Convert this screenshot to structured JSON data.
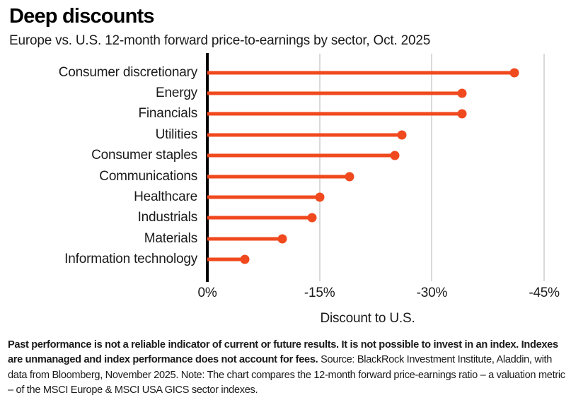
{
  "header": {
    "title": "Deep discounts",
    "subtitle": "Europe vs. U.S. 12-month forward price-to-earnings by sector, Oct. 2025"
  },
  "chart_data": {
    "type": "bar",
    "style": "lollipop",
    "orientation": "horizontal",
    "title": "Deep discounts",
    "subtitle": "Europe vs. U.S. 12-month forward price-to-earnings by sector, Oct. 2025",
    "categories": [
      "Consumer discretionary",
      "Energy",
      "Financials",
      "Utilities",
      "Consumer staples",
      "Communications",
      "Healthcare",
      "Industrials",
      "Materials",
      "Information technology"
    ],
    "values": [
      -41,
      -34,
      -34,
      -26,
      -25,
      -19,
      -15,
      -14,
      -10,
      -5
    ],
    "unit": "%",
    "xlabel": "Discount to U.S.",
    "ylabel": "",
    "x_ticks": [
      "0%",
      "-15%",
      "-30%",
      "-45%"
    ],
    "x_tick_values": [
      0,
      -15,
      -30,
      -45
    ],
    "xlim": [
      0,
      -48.5
    ],
    "grid": "vertical-gridlines-on",
    "legend": "none",
    "accent_color": "#F0491E",
    "axis_color": "#000000",
    "gridline_color": "#D9D9D9"
  },
  "footer": {
    "disclaimer_bold": "Past performance is not a reliable indicator of current or future results. It is not possible to invest in an index. Indexes are unmanaged and index performance does not account for fees.",
    "source_note": " Source: BlackRock Investment Institute, Aladdin, with data from Bloomberg, November 2025. Note: The chart compares the 12-month forward price-earnings ratio – a valuation metric – of the MSCI Europe & MSCI USA GICS sector indexes."
  }
}
